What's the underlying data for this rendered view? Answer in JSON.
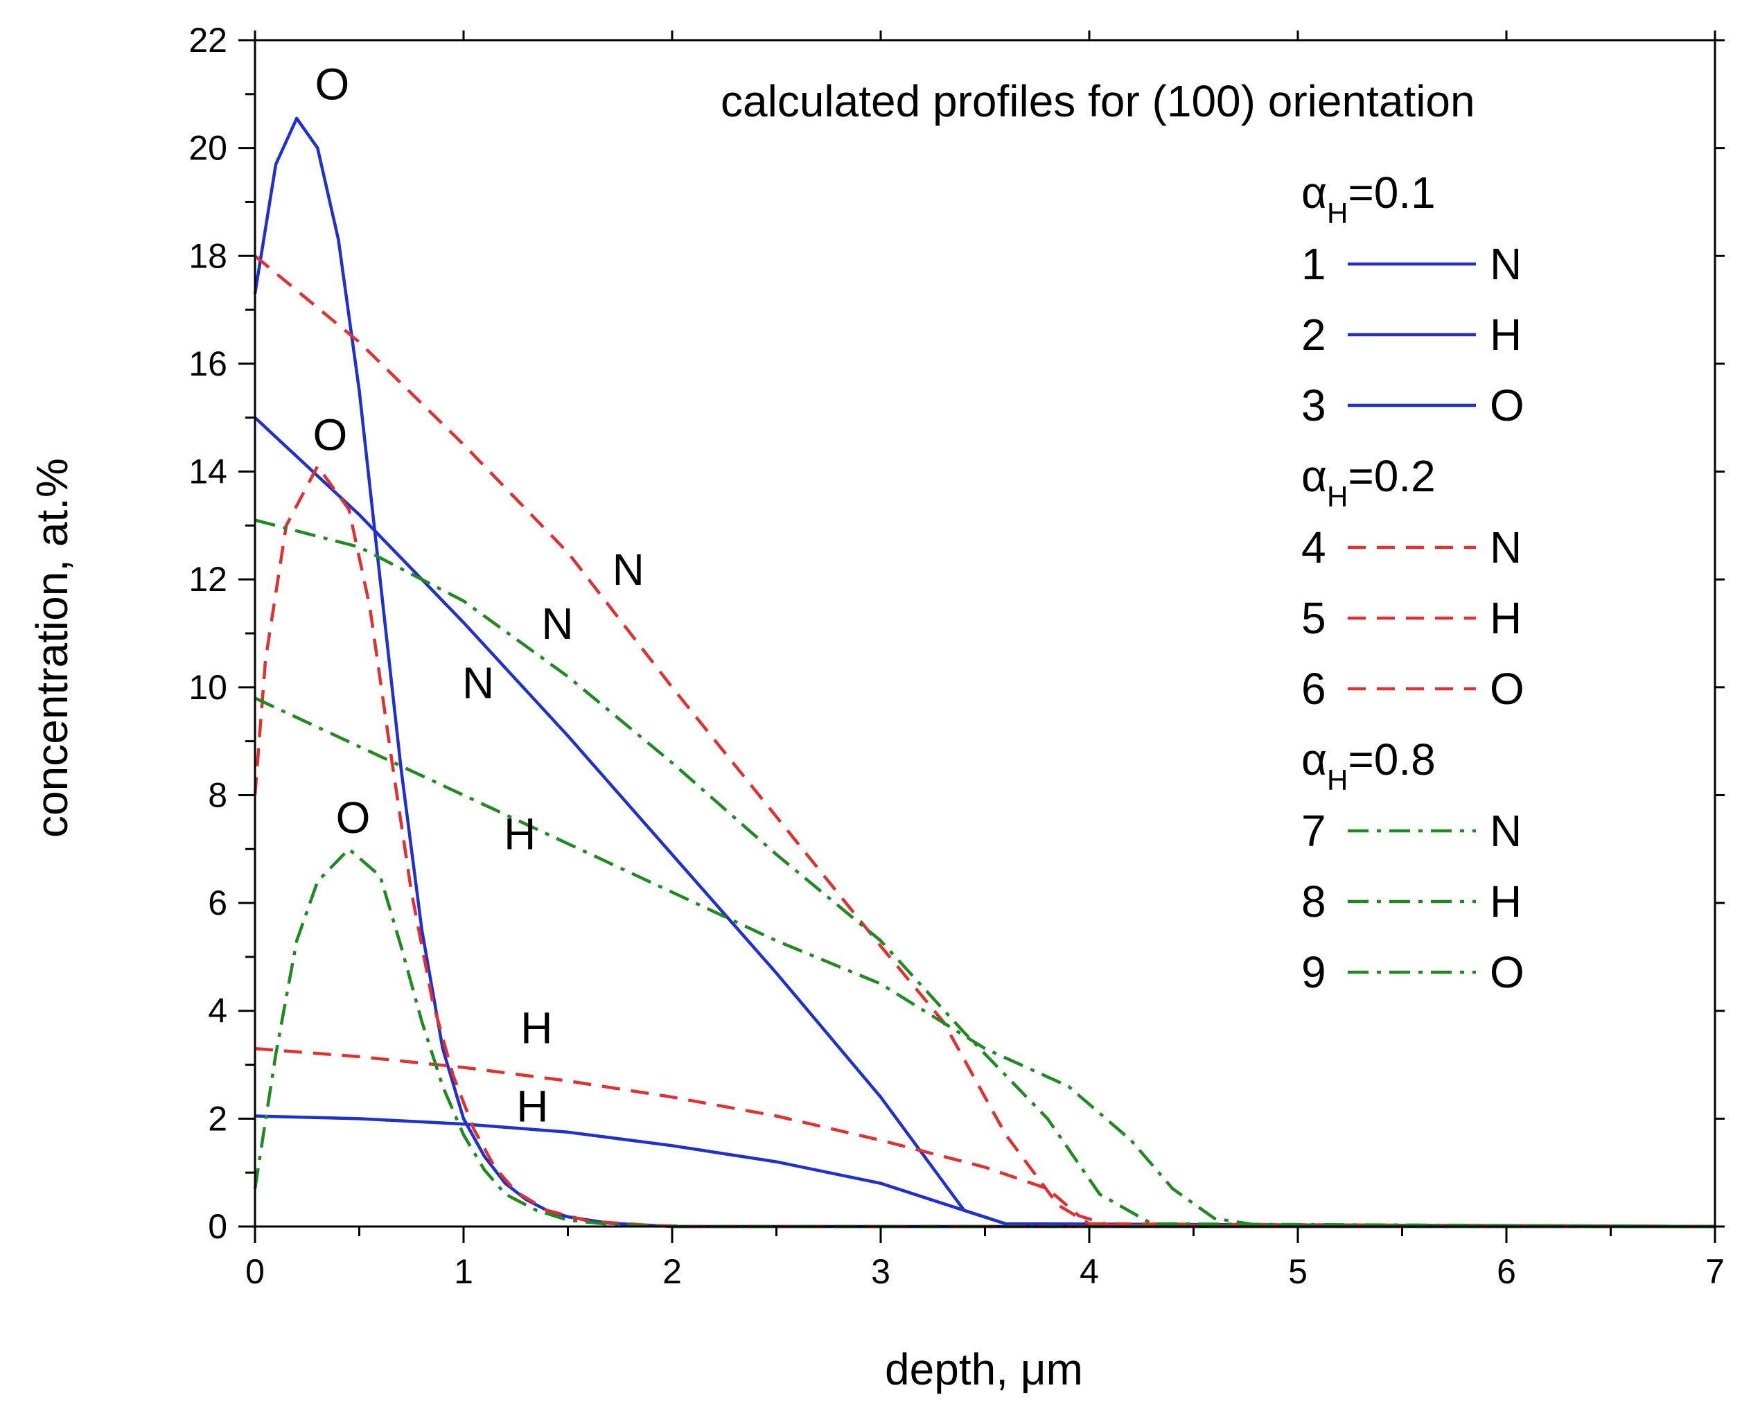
{
  "chart_data": {
    "type": "line",
    "title": "calculated profiles for (100) orientation",
    "xlabel": "depth, μm",
    "ylabel": "concentration, at.%",
    "xlim": [
      0,
      7
    ],
    "ylim": [
      0,
      22
    ],
    "xticks": [
      "0",
      "1",
      "2",
      "3",
      "4",
      "5",
      "6",
      "7"
    ],
    "yticks": [
      "0",
      "2",
      "4",
      "6",
      "8",
      "10",
      "12",
      "14",
      "16",
      "18",
      "20",
      "22"
    ],
    "colors": {
      "blue": "#1f2fd0",
      "red": "#e03030",
      "green": "#1f8a1f"
    },
    "legend_groups": [
      {
        "alpha_symbol": "α",
        "alpha_sub": "H",
        "alpha_value": "=0.1",
        "style": "solid",
        "color": "blue",
        "items": [
          {
            "num": "1",
            "label": "N"
          },
          {
            "num": "2",
            "label": "H"
          },
          {
            "num": "3",
            "label": "O"
          }
        ]
      },
      {
        "alpha_symbol": "α",
        "alpha_sub": "H",
        "alpha_value": "=0.2",
        "style": "dash",
        "color": "red",
        "items": [
          {
            "num": "4",
            "label": "N"
          },
          {
            "num": "5",
            "label": "H"
          },
          {
            "num": "6",
            "label": "O"
          }
        ]
      },
      {
        "alpha_symbol": "α",
        "alpha_sub": "H",
        "alpha_value": "=0.8",
        "style": "dashdot",
        "color": "green",
        "items": [
          {
            "num": "7",
            "label": "N"
          },
          {
            "num": "8",
            "label": "H"
          },
          {
            "num": "9",
            "label": "O"
          }
        ]
      }
    ],
    "series": [
      {
        "name": "1 N (αH=0.1)",
        "color": "blue",
        "style": "solid",
        "points": [
          [
            0,
            15
          ],
          [
            0.5,
            13.2
          ],
          [
            1,
            11.2
          ],
          [
            1.5,
            9.1
          ],
          [
            2,
            6.9
          ],
          [
            2.5,
            4.7
          ],
          [
            3,
            2.4
          ],
          [
            3.4,
            0.3
          ],
          [
            3.6,
            0.05
          ],
          [
            7,
            0
          ]
        ]
      },
      {
        "name": "2 H (αH=0.1)",
        "color": "blue",
        "style": "solid",
        "points": [
          [
            0,
            2.05
          ],
          [
            0.5,
            2.0
          ],
          [
            1,
            1.9
          ],
          [
            1.5,
            1.75
          ],
          [
            2,
            1.5
          ],
          [
            2.5,
            1.2
          ],
          [
            3,
            0.8
          ],
          [
            3.4,
            0.3
          ],
          [
            3.6,
            0.05
          ],
          [
            7,
            0
          ]
        ]
      },
      {
        "name": "3 O (αH=0.1)",
        "color": "blue",
        "style": "solid",
        "points": [
          [
            0,
            17.3
          ],
          [
            0.1,
            19.7
          ],
          [
            0.2,
            20.55
          ],
          [
            0.3,
            20.0
          ],
          [
            0.4,
            18.3
          ],
          [
            0.5,
            15.5
          ],
          [
            0.6,
            12.0
          ],
          [
            0.7,
            8.5
          ],
          [
            0.8,
            5.5
          ],
          [
            0.9,
            3.3
          ],
          [
            1.0,
            2.0
          ],
          [
            1.1,
            1.3
          ],
          [
            1.2,
            0.8
          ],
          [
            1.3,
            0.5
          ],
          [
            1.4,
            0.3
          ],
          [
            1.5,
            0.18
          ],
          [
            1.7,
            0.06
          ],
          [
            2,
            0
          ],
          [
            7,
            0
          ]
        ]
      },
      {
        "name": "4 N (αH=0.2)",
        "color": "red",
        "style": "dash",
        "points": [
          [
            0,
            18.0
          ],
          [
            0.5,
            16.4
          ],
          [
            1,
            14.5
          ],
          [
            1.5,
            12.5
          ],
          [
            2,
            10.0
          ],
          [
            2.5,
            7.6
          ],
          [
            3,
            5.2
          ],
          [
            3.3,
            3.8
          ],
          [
            3.6,
            1.7
          ],
          [
            3.85,
            0.4
          ],
          [
            4.0,
            0.05
          ],
          [
            7,
            0
          ]
        ]
      },
      {
        "name": "5 H (αH=0.2)",
        "color": "red",
        "style": "dash",
        "points": [
          [
            0,
            3.3
          ],
          [
            0.5,
            3.15
          ],
          [
            1,
            2.95
          ],
          [
            1.5,
            2.7
          ],
          [
            2,
            2.4
          ],
          [
            2.5,
            2.05
          ],
          [
            3,
            1.6
          ],
          [
            3.5,
            1.1
          ],
          [
            3.8,
            0.7
          ],
          [
            3.95,
            0.2
          ],
          [
            4.1,
            0.02
          ],
          [
            7,
            0
          ]
        ]
      },
      {
        "name": "6 O (αH=0.2)",
        "color": "red",
        "style": "dash",
        "points": [
          [
            0,
            8.0
          ],
          [
            0.05,
            10.5
          ],
          [
            0.15,
            13.0
          ],
          [
            0.3,
            14.1
          ],
          [
            0.45,
            13.3
          ],
          [
            0.55,
            11.5
          ],
          [
            0.65,
            8.8
          ],
          [
            0.75,
            6.2
          ],
          [
            0.85,
            4.2
          ],
          [
            0.95,
            2.8
          ],
          [
            1.05,
            1.8
          ],
          [
            1.15,
            1.1
          ],
          [
            1.25,
            0.65
          ],
          [
            1.4,
            0.3
          ],
          [
            1.6,
            0.1
          ],
          [
            1.9,
            0.02
          ],
          [
            2.1,
            0
          ],
          [
            7,
            0
          ]
        ]
      },
      {
        "name": "7 N (αH=0.8)",
        "color": "green",
        "style": "dashdot",
        "points": [
          [
            0,
            13.1
          ],
          [
            0.5,
            12.6
          ],
          [
            1,
            11.6
          ],
          [
            1.5,
            10.2
          ],
          [
            2,
            8.6
          ],
          [
            2.5,
            6.9
          ],
          [
            3,
            5.3
          ],
          [
            3.4,
            3.6
          ],
          [
            3.8,
            2.0
          ],
          [
            4.05,
            0.6
          ],
          [
            4.3,
            0.05
          ],
          [
            7,
            0
          ]
        ]
      },
      {
        "name": "8 H (αH=0.8)",
        "color": "green",
        "style": "dashdot",
        "points": [
          [
            0,
            9.8
          ],
          [
            0.5,
            8.9
          ],
          [
            1,
            8.0
          ],
          [
            1.5,
            7.1
          ],
          [
            2,
            6.2
          ],
          [
            2.5,
            5.3
          ],
          [
            3,
            4.5
          ],
          [
            3.5,
            3.3
          ],
          [
            3.9,
            2.6
          ],
          [
            4.2,
            1.6
          ],
          [
            4.4,
            0.7
          ],
          [
            4.6,
            0.15
          ],
          [
            4.8,
            0.03
          ],
          [
            7,
            0
          ]
        ]
      },
      {
        "name": "9 O (αH=0.8)",
        "color": "green",
        "style": "dashdot",
        "points": [
          [
            0,
            0.7
          ],
          [
            0.1,
            3.2
          ],
          [
            0.2,
            5.3
          ],
          [
            0.3,
            6.4
          ],
          [
            0.45,
            7.0
          ],
          [
            0.6,
            6.5
          ],
          [
            0.7,
            5.2
          ],
          [
            0.8,
            3.8
          ],
          [
            0.9,
            2.6
          ],
          [
            1.0,
            1.7
          ],
          [
            1.1,
            1.05
          ],
          [
            1.2,
            0.6
          ],
          [
            1.35,
            0.3
          ],
          [
            1.5,
            0.12
          ],
          [
            1.7,
            0.04
          ],
          [
            2,
            0
          ],
          [
            7,
            0
          ]
        ]
      }
    ],
    "annotations": [
      {
        "text": "O",
        "x": 0.37,
        "y": 20.9
      },
      {
        "text": "O",
        "x": 0.36,
        "y": 14.4
      },
      {
        "text": "O",
        "x": 0.47,
        "y": 7.3
      },
      {
        "text": "N",
        "x": 1.79,
        "y": 11.9
      },
      {
        "text": "N",
        "x": 1.45,
        "y": 10.9
      },
      {
        "text": "N",
        "x": 1.07,
        "y": 9.8
      },
      {
        "text": "H",
        "x": 1.27,
        "y": 7.0
      },
      {
        "text": "H",
        "x": 1.35,
        "y": 3.4
      },
      {
        "text": "H",
        "x": 1.33,
        "y": 1.95
      }
    ]
  }
}
